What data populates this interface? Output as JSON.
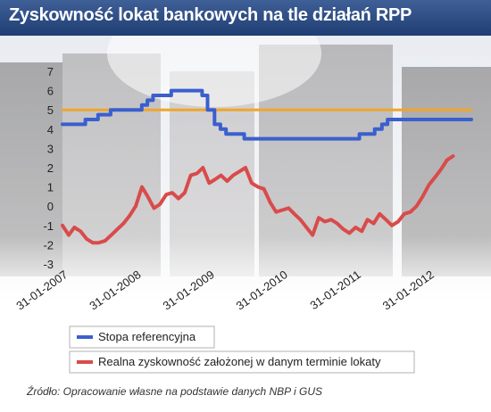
{
  "header": {
    "title": "Zyskowność lokat bankowych na tle działań RPP"
  },
  "colors": {
    "header": "#2d4d85",
    "stopa": "#3a5fcd",
    "realna": "#d94b4b",
    "threshold": "#f0a52a"
  },
  "source": "Źródło: Opracowanie własne na podstawie danych NBP i GUS",
  "chart_data": {
    "type": "line",
    "title": "Zyskowność lokat bankowych na tle działań RPP",
    "ylim": [
      -3,
      7
    ],
    "yticks": [
      "7",
      "6",
      "5",
      "4",
      "3",
      "2",
      "1",
      "0",
      "-1",
      "-2",
      "-3"
    ],
    "xticks": [
      "31-01-2007",
      "31-01-2008",
      "31-01-2009",
      "31-01-2010",
      "31-01-2011",
      "31-01-2012"
    ],
    "grid": false,
    "legend_position": "bottom",
    "series": [
      {
        "name": "Stopa referencyjna",
        "color": "#3a5fcd",
        "step": true,
        "points": [
          [
            "2007-01-01",
            4.25
          ],
          [
            "2007-04-25",
            4.5
          ],
          [
            "2007-06-27",
            4.75
          ],
          [
            "2007-08-29",
            5.0
          ],
          [
            "2007-11-28",
            5.0
          ],
          [
            "2008-01-31",
            5.25
          ],
          [
            "2008-02-28",
            5.5
          ],
          [
            "2008-03-27",
            5.75
          ],
          [
            "2008-06-26",
            6.0
          ],
          [
            "2008-11-27",
            5.75
          ],
          [
            "2008-12-24",
            5.0
          ],
          [
            "2009-01-28",
            4.25
          ],
          [
            "2009-02-26",
            4.0
          ],
          [
            "2009-03-26",
            3.75
          ],
          [
            "2009-06-25",
            3.5
          ],
          [
            "2011-01-20",
            3.75
          ],
          [
            "2011-04-06",
            4.0
          ],
          [
            "2011-05-12",
            4.25
          ],
          [
            "2011-06-09",
            4.5
          ],
          [
            "2012-07-31",
            4.5
          ]
        ]
      },
      {
        "name": "Realna zyskowność założonej w danym terminie lokaty",
        "color": "#d94b4b",
        "step": false,
        "points": [
          [
            "2007-01-01",
            -1.0
          ],
          [
            "2007-02-01",
            -1.5
          ],
          [
            "2007-03-01",
            -1.1
          ],
          [
            "2007-04-01",
            -1.3
          ],
          [
            "2007-05-01",
            -1.7
          ],
          [
            "2007-06-01",
            -1.9
          ],
          [
            "2007-07-01",
            -1.9
          ],
          [
            "2007-08-01",
            -1.8
          ],
          [
            "2007-09-01",
            -1.5
          ],
          [
            "2007-10-01",
            -1.2
          ],
          [
            "2007-11-01",
            -0.9
          ],
          [
            "2007-12-01",
            -0.5
          ],
          [
            "2008-01-01",
            0.0
          ],
          [
            "2008-02-01",
            1.0
          ],
          [
            "2008-03-01",
            0.5
          ],
          [
            "2008-04-01",
            -0.1
          ],
          [
            "2008-05-01",
            0.1
          ],
          [
            "2008-06-01",
            0.6
          ],
          [
            "2008-07-01",
            0.7
          ],
          [
            "2008-08-01",
            0.4
          ],
          [
            "2008-09-01",
            0.7
          ],
          [
            "2008-10-01",
            1.6
          ],
          [
            "2008-11-01",
            1.7
          ],
          [
            "2008-12-01",
            2.0
          ],
          [
            "2009-01-01",
            1.2
          ],
          [
            "2009-02-01",
            1.4
          ],
          [
            "2009-03-01",
            1.6
          ],
          [
            "2009-04-01",
            1.3
          ],
          [
            "2009-05-01",
            1.6
          ],
          [
            "2009-06-01",
            1.8
          ],
          [
            "2009-07-01",
            2.0
          ],
          [
            "2009-08-01",
            1.2
          ],
          [
            "2009-09-01",
            1.0
          ],
          [
            "2009-10-01",
            0.9
          ],
          [
            "2009-11-01",
            0.2
          ],
          [
            "2009-12-01",
            -0.3
          ],
          [
            "2010-01-01",
            -0.2
          ],
          [
            "2010-02-01",
            -0.1
          ],
          [
            "2010-03-01",
            -0.4
          ],
          [
            "2010-04-01",
            -0.7
          ],
          [
            "2010-05-01",
            -1.1
          ],
          [
            "2010-06-01",
            -1.5
          ],
          [
            "2010-07-01",
            -0.6
          ],
          [
            "2010-08-01",
            -0.8
          ],
          [
            "2010-09-01",
            -0.7
          ],
          [
            "2010-10-01",
            -0.9
          ],
          [
            "2010-11-01",
            -1.2
          ],
          [
            "2010-12-01",
            -1.4
          ],
          [
            "2011-01-01",
            -1.1
          ],
          [
            "2011-02-01",
            -1.3
          ],
          [
            "2011-03-01",
            -0.7
          ],
          [
            "2011-04-01",
            -0.9
          ],
          [
            "2011-05-01",
            -0.4
          ],
          [
            "2011-06-01",
            -0.7
          ],
          [
            "2011-07-01",
            -1.0
          ],
          [
            "2011-08-01",
            -0.8
          ],
          [
            "2011-09-01",
            -0.4
          ],
          [
            "2011-10-01",
            -0.3
          ],
          [
            "2011-11-01",
            0.0
          ],
          [
            "2011-12-01",
            0.5
          ],
          [
            "2012-01-01",
            1.1
          ],
          [
            "2012-02-01",
            1.5
          ],
          [
            "2012-03-01",
            1.9
          ],
          [
            "2012-04-01",
            2.4
          ],
          [
            "2012-05-01",
            2.6
          ]
        ]
      },
      {
        "name": "",
        "color": "#f0a52a",
        "step": false,
        "points": [
          [
            "2007-01-01",
            5.0
          ],
          [
            "2012-07-31",
            5.0
          ]
        ]
      }
    ]
  }
}
